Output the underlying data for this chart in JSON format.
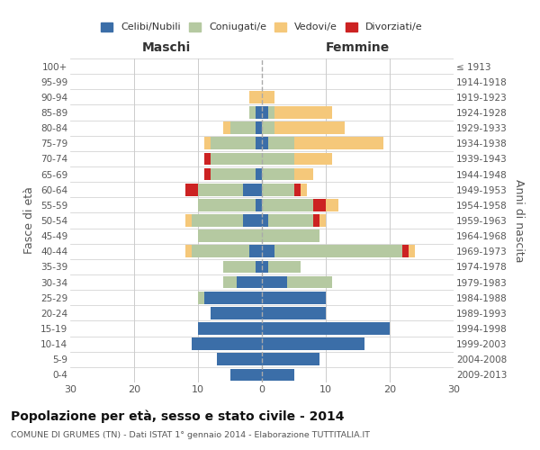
{
  "age_groups": [
    "100+",
    "95-99",
    "90-94",
    "85-89",
    "80-84",
    "75-79",
    "70-74",
    "65-69",
    "60-64",
    "55-59",
    "50-54",
    "45-49",
    "40-44",
    "35-39",
    "30-34",
    "25-29",
    "20-24",
    "15-19",
    "10-14",
    "5-9",
    "0-4"
  ],
  "birth_years": [
    "≤ 1913",
    "1914-1918",
    "1919-1923",
    "1924-1928",
    "1929-1933",
    "1934-1938",
    "1939-1943",
    "1944-1948",
    "1949-1953",
    "1954-1958",
    "1959-1963",
    "1964-1968",
    "1969-1973",
    "1974-1978",
    "1979-1983",
    "1984-1988",
    "1989-1993",
    "1994-1998",
    "1999-2003",
    "2004-2008",
    "2009-2013"
  ],
  "males": {
    "celibi": [
      0,
      0,
      0,
      1,
      1,
      1,
      0,
      1,
      3,
      1,
      3,
      0,
      2,
      1,
      4,
      9,
      8,
      10,
      11,
      7,
      5
    ],
    "coniugati": [
      0,
      0,
      0,
      1,
      4,
      7,
      8,
      7,
      7,
      9,
      8,
      10,
      9,
      5,
      2,
      1,
      0,
      0,
      0,
      0,
      0
    ],
    "vedovi": [
      0,
      0,
      2,
      0,
      1,
      1,
      0,
      0,
      0,
      0,
      1,
      0,
      1,
      0,
      0,
      0,
      0,
      0,
      0,
      0,
      0
    ],
    "divorziati": [
      0,
      0,
      0,
      0,
      0,
      0,
      1,
      1,
      2,
      0,
      0,
      0,
      0,
      0,
      0,
      0,
      0,
      0,
      0,
      0,
      0
    ]
  },
  "females": {
    "nubili": [
      0,
      0,
      0,
      1,
      0,
      1,
      0,
      0,
      0,
      0,
      1,
      0,
      2,
      1,
      4,
      10,
      10,
      20,
      16,
      9,
      5
    ],
    "coniugate": [
      0,
      0,
      0,
      1,
      2,
      4,
      5,
      5,
      5,
      8,
      7,
      9,
      20,
      5,
      7,
      0,
      0,
      0,
      0,
      0,
      0
    ],
    "vedove": [
      0,
      0,
      2,
      9,
      11,
      14,
      6,
      3,
      1,
      2,
      1,
      0,
      1,
      0,
      0,
      0,
      0,
      0,
      0,
      0,
      0
    ],
    "divorziate": [
      0,
      0,
      0,
      0,
      0,
      0,
      0,
      0,
      1,
      2,
      1,
      0,
      1,
      0,
      0,
      0,
      0,
      0,
      0,
      0,
      0
    ]
  },
  "colors": {
    "celibi": "#3b6ea8",
    "coniugati": "#b5c9a1",
    "vedovi": "#f5c87a",
    "divorziati": "#cc2222"
  },
  "xlim": 30,
  "title": "Popolazione per età, sesso e stato civile - 2014",
  "subtitle": "COMUNE DI GRUMES (TN) - Dati ISTAT 1° gennaio 2014 - Elaborazione TUTTITALIA.IT",
  "ylabel_left": "Fasce di età",
  "ylabel_right": "Anni di nascita",
  "xlabel_maschi": "Maschi",
  "xlabel_femmine": "Femmine",
  "legend_labels": [
    "Celibi/Nubili",
    "Coniugati/e",
    "Vedovi/e",
    "Divorziati/e"
  ],
  "background_color": "#ffffff",
  "grid_color": "#cccccc"
}
